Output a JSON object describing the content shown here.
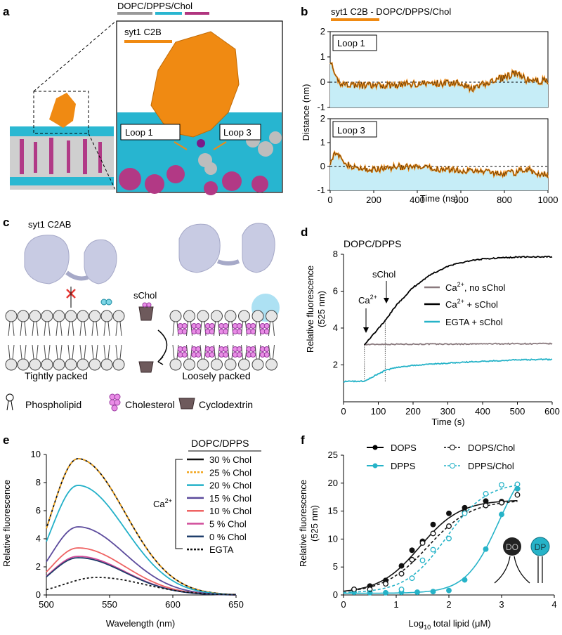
{
  "panels": {
    "a": {
      "letter": "a",
      "legend": [
        "DOPC",
        "DPPS",
        "Chol"
      ],
      "legend_colors": [
        "#999999",
        "#29b6d0",
        "#b0357f"
      ],
      "inset_title": "syt1 C2B",
      "loop1": "Loop 1",
      "loop3": "Loop 3",
      "protein_color": "#f08a12"
    },
    "b": {
      "letter": "b",
      "title_left": "syt1 C2B",
      "title_right": " - DOPC/DPPS/Chol",
      "ylabel": "Distance (nm)",
      "xlabel": "Time (ns)",
      "sub1": "Loop 1",
      "sub2": "Loop 3",
      "yticks": [
        "2",
        "1",
        "0",
        "-1"
      ],
      "xticks": [
        "0",
        "200",
        "400",
        "600",
        "800",
        "1000"
      ]
    },
    "c": {
      "letter": "c",
      "title": "syt1 C2AB",
      "schol": "sChol",
      "left": "Tightly packed",
      "right": "Loosely packed",
      "leg1": "Phospholipid",
      "leg2": "Cholesterol",
      "leg3": "Cyclodextrin"
    },
    "d": {
      "letter": "d",
      "title": "DOPC/DPPS",
      "ylabel1": "Relative fluorescence",
      "ylabel2": "(525 nm)",
      "xlabel": "Time (s)",
      "ann_schol": "sChol",
      "ann_ca_base": "Ca",
      "sup": "2+",
      "yticks": [
        "8",
        "6",
        "4",
        "2"
      ],
      "xticks": [
        "0",
        "100",
        "200",
        "300",
        "400",
        "500",
        "600"
      ],
      "leg1_base": "Ca",
      "leg1_tail": ", no sChol",
      "leg2_base": "Ca",
      "leg2_tail": " + sChol",
      "leg3": "EGTA + sChol"
    },
    "e": {
      "letter": "e",
      "ylabel": "Relative fluorescence",
      "xlabel": "Wavelength (nm)",
      "legend_title": "DOPC/DPPS",
      "ca_base": "Ca",
      "sup": "2+",
      "yticks": [
        "10",
        "8",
        "6",
        "4",
        "2",
        "0"
      ],
      "xticks": [
        "500",
        "550",
        "600",
        "650"
      ],
      "legend": [
        "30 % Chol",
        "25 % Chol",
        "20 % Chol",
        "15 % Chol",
        "10 % Chol",
        "5 % Chol",
        "0 % Chol",
        "EGTA"
      ]
    },
    "f": {
      "letter": "f",
      "ylabel1": "Relative fluorescence",
      "ylabel2": "(525 nm)",
      "xlabel_pre": "Log",
      "xlabel_sub": "10",
      "xlabel_post": " total lipid (μM)",
      "yticks": [
        "25",
        "20",
        "15",
        "10",
        "5",
        "0"
      ],
      "xticks": [
        "0",
        "1",
        "2",
        "3",
        "4"
      ],
      "legend": [
        "DOPS",
        "DPPS",
        "DOPS/Chol",
        "DPPS/Chol"
      ],
      "do": "DO",
      "dp": "DP"
    }
  },
  "chart_data": [
    {
      "panel": "b",
      "type": "line",
      "title": "syt1 C2B - DOPC/DPPS/Chol",
      "xlabel": "Time (ns)",
      "ylabel": "Distance (nm)",
      "xlim": [
        0,
        1000
      ],
      "series": [
        {
          "name": "Loop 1",
          "ylim": [
            -1,
            2
          ],
          "x": [
            0,
            20,
            50,
            100,
            200,
            300,
            400,
            500,
            600,
            650,
            700,
            800,
            850,
            900,
            950,
            1000
          ],
          "values": [
            0.9,
            0.2,
            -0.05,
            -0.1,
            -0.15,
            -0.1,
            -0.05,
            -0.05,
            0.0,
            -0.3,
            -0.1,
            0.2,
            0.35,
            0.1,
            0.05,
            0.05
          ]
        },
        {
          "name": "Loop 3",
          "ylim": [
            -1,
            2
          ],
          "x": [
            0,
            20,
            50,
            100,
            200,
            300,
            400,
            500,
            600,
            650,
            700,
            800,
            850,
            900,
            950,
            1000
          ],
          "values": [
            0.2,
            0.6,
            0.3,
            -0.05,
            -0.15,
            0.0,
            -0.05,
            -0.1,
            -0.15,
            -0.2,
            -0.2,
            -0.3,
            -0.25,
            -0.1,
            -0.3,
            -0.35
          ]
        }
      ]
    },
    {
      "panel": "d",
      "type": "line",
      "title": "DOPC/DPPS",
      "xlabel": "Time (s)",
      "ylabel": "Relative fluorescence (525 nm)",
      "xlim": [
        0,
        600
      ],
      "ylim": [
        0,
        8
      ],
      "series": [
        {
          "name": "Ca2+, no sChol",
          "color": "#8a7a7e",
          "x": [
            60,
            100,
            200,
            300,
            400,
            500,
            600
          ],
          "values": [
            3.1,
            3.12,
            3.13,
            3.13,
            3.14,
            3.15,
            3.15
          ]
        },
        {
          "name": "Ca2+ + sChol",
          "color": "#000000",
          "x": [
            60,
            120,
            150,
            200,
            250,
            300,
            350,
            400,
            500,
            600
          ],
          "values": [
            3.1,
            4.4,
            5.2,
            6.2,
            6.9,
            7.35,
            7.6,
            7.75,
            7.85,
            7.87
          ]
        },
        {
          "name": "EGTA + sChol",
          "color": "#26b3c8",
          "x": [
            0,
            60,
            120,
            150,
            200,
            300,
            400,
            500,
            600
          ],
          "values": [
            1.1,
            1.12,
            1.7,
            1.85,
            1.98,
            2.1,
            2.2,
            2.27,
            2.3
          ]
        }
      ]
    },
    {
      "panel": "e",
      "type": "line",
      "xlabel": "Wavelength (nm)",
      "ylabel": "Relative fluorescence",
      "xlim": [
        500,
        650
      ],
      "ylim": [
        0,
        10
      ],
      "series": [
        {
          "name": "30 % Chol",
          "color": "#111111",
          "peak": 9.7
        },
        {
          "name": "25 % Chol",
          "color": "#f2a51c",
          "peak": 9.7
        },
        {
          "name": "20 % Chol",
          "color": "#22b0c8",
          "peak": 7.8
        },
        {
          "name": "15 % Chol",
          "color": "#5b4a9c",
          "peak": 4.85
        },
        {
          "name": "10 % Chol",
          "color": "#ef6363",
          "peak": 3.35
        },
        {
          "name": "5 % Chol",
          "color": "#d04b9a",
          "peak": 2.75
        },
        {
          "name": "0 % Chol",
          "color": "#1f3e6b",
          "peak": 2.65
        },
        {
          "name": "EGTA",
          "color": "#111111",
          "peak": 1.25
        }
      ]
    },
    {
      "panel": "f",
      "type": "scatter",
      "xlabel": "Log10 total lipid (μM)",
      "ylabel": "Relative fluorescence (525 nm)",
      "xlim": [
        0,
        4
      ],
      "ylim": [
        0,
        25
      ],
      "series": [
        {
          "name": "DOPS",
          "color": "#111111",
          "x": [
            0.2,
            0.5,
            0.8,
            1.1,
            1.3,
            1.5,
            1.7,
            2.0,
            2.3,
            2.7,
            3.0,
            3.3
          ],
          "values": [
            1.0,
            1.6,
            2.6,
            5.2,
            8.0,
            9.6,
            12.6,
            14.6,
            15.6,
            16.8,
            16.7,
            19.0
          ]
        },
        {
          "name": "DPPS",
          "color": "#26b3c8",
          "x": [
            0.2,
            0.5,
            0.8,
            1.1,
            1.4,
            1.7,
            2.0,
            2.3,
            2.7,
            3.0,
            3.3
          ],
          "values": [
            0.5,
            0.4,
            0.4,
            0.5,
            0.5,
            0.6,
            0.8,
            2.7,
            8.2,
            14.4,
            19.0
          ]
        },
        {
          "name": "DOPS/Chol",
          "color": "#111111",
          "x": [
            0.2,
            0.5,
            0.8,
            1.1,
            1.3,
            1.5,
            1.7,
            2.0,
            2.3,
            2.7,
            3.0,
            3.3
          ],
          "values": [
            1.0,
            1.0,
            2.0,
            3.8,
            6.3,
            9.3,
            11.0,
            12.3,
            14.8,
            16.0,
            16.5,
            17.9
          ]
        },
        {
          "name": "DPPS/Chol",
          "color": "#26b3c8",
          "x": [
            1.1,
            1.3,
            1.5,
            1.7,
            2.0,
            2.3,
            2.7,
            3.0,
            3.3
          ],
          "values": [
            1.0,
            3.0,
            6.2,
            8.1,
            10.1,
            14.6,
            18.1,
            19.7,
            19.8
          ]
        }
      ]
    }
  ]
}
